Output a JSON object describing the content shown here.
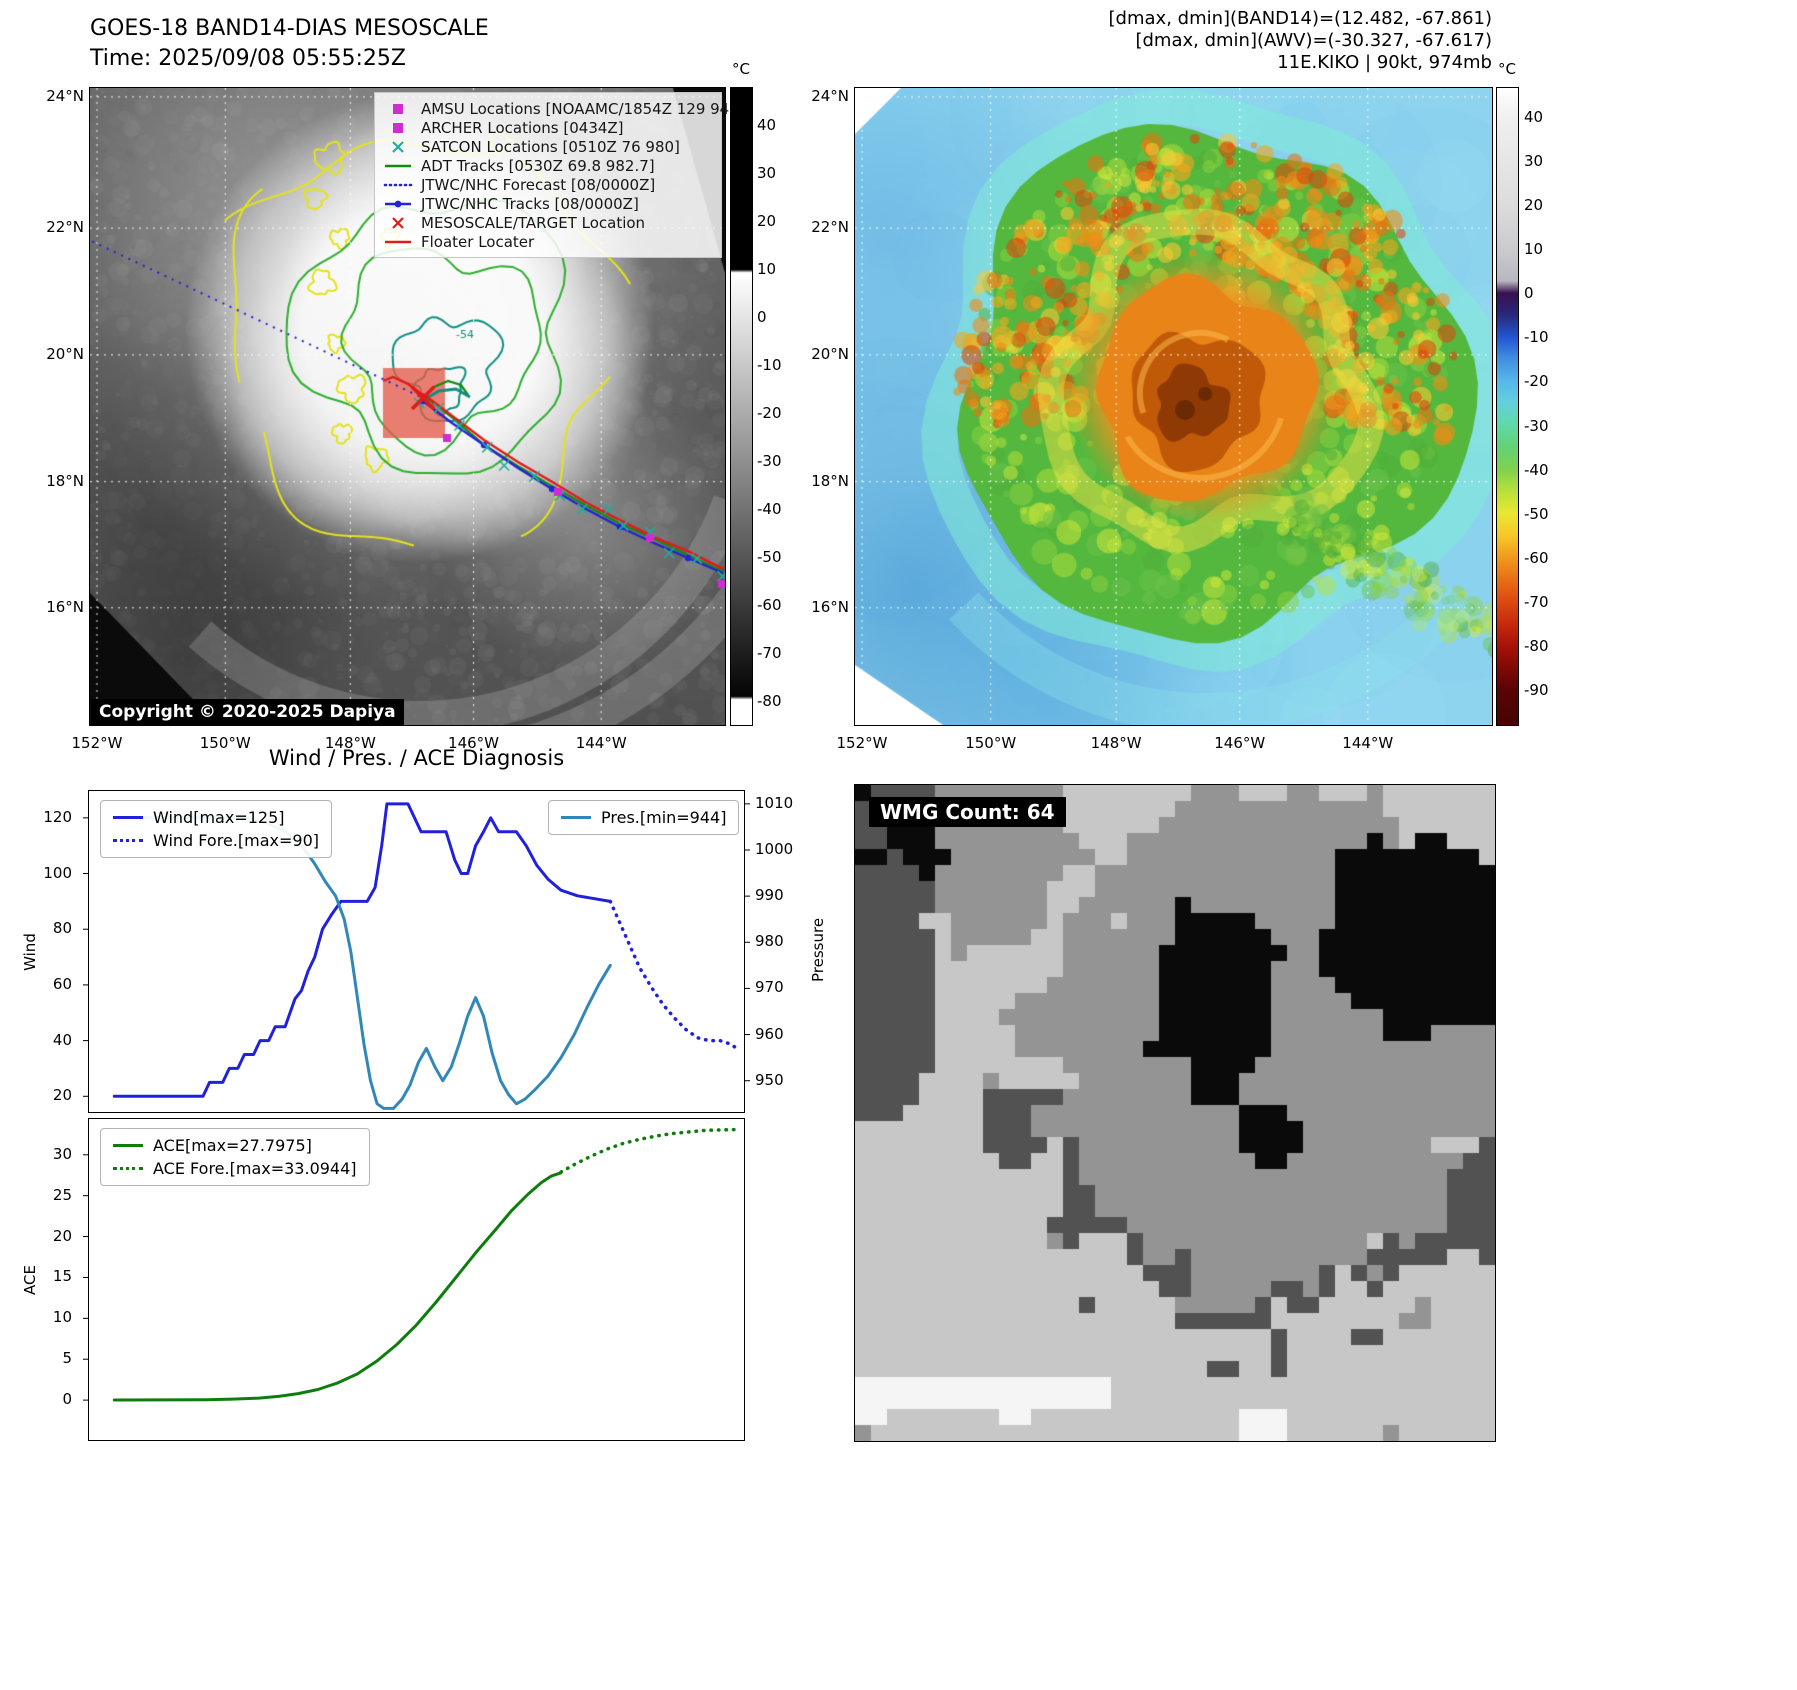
{
  "ir_panel": {
    "title_line1": "GOES-18 BAND14-DIAS MESOSCALE",
    "title_line2": "Time: 2025/09/08 05:55:25Z",
    "copyright": "Copyright © 2020-2025 Dapiya",
    "contour_label": "-54",
    "colorbar": {
      "unit": "°C",
      "ticks": [
        40,
        30,
        20,
        10,
        0,
        -10,
        -20,
        -30,
        -40,
        -50,
        -60,
        -70,
        -80
      ]
    },
    "lat_ticks": [
      "24°N",
      "22°N",
      "20°N",
      "18°N",
      "16°N"
    ],
    "lon_ticks": [
      "152°W",
      "150°W",
      "148°W",
      "146°W",
      "144°W"
    ],
    "legend_items": [
      {
        "marker": "square",
        "color": "#cf2dcf",
        "label": "AMSU Locations [NOAAMC/1854Z 129 940]"
      },
      {
        "marker": "square",
        "color": "#cf2dcf",
        "label": "ARCHER Locations [0434Z]"
      },
      {
        "marker": "x",
        "color": "#1fae9e",
        "label": "SATCON Locations [0510Z 76 980]"
      },
      {
        "marker": "line",
        "color": "#128a12",
        "label": "ADT Tracks [0530Z 69.8 982.7]"
      },
      {
        "marker": "dotted",
        "color": "#2222d6",
        "label": "JTWC/NHC Forecast [08/0000Z]"
      },
      {
        "marker": "line-dot",
        "color": "#2222d6",
        "label": "JTWC/NHC Tracks [08/0000Z]"
      },
      {
        "marker": "x",
        "color": "#e31a1a",
        "label": "MESOSCALE/TARGET Location"
      },
      {
        "marker": "line",
        "color": "#e31a1a",
        "label": "Floater Locater"
      }
    ]
  },
  "awv_panel": {
    "info_lines": [
      "[dmax, dmin](BAND14)=(12.482, -67.861)",
      "[dmax, dmin](AWV)=(-30.327, -67.617)",
      "11E.KIKO | 90kt, 974mb"
    ],
    "colorbar": {
      "unit": "°C",
      "ticks": [
        40,
        30,
        20,
        10,
        0,
        -10,
        -20,
        -30,
        -40,
        -50,
        -60,
        -70,
        -80,
        -90
      ]
    },
    "lat_ticks": [
      "24°N",
      "22°N",
      "20°N",
      "18°N",
      "16°N"
    ],
    "lon_ticks": [
      "152°W",
      "150°W",
      "148°W",
      "146°W",
      "144°W"
    ]
  },
  "wmg_panel": {
    "label": "WMG Count: 64"
  },
  "diagnosis_title": "Wind / Pres. / ACE Diagnosis",
  "chart_data": [
    {
      "type": "line",
      "title": "Wind / Pres. / ACE Diagnosis",
      "xlabel": "",
      "ylabel": "Wind",
      "y2label": "Pressure",
      "ylim": [
        14,
        130
      ],
      "y2lim": [
        943,
        1013
      ],
      "yticks": [
        20,
        40,
        60,
        80,
        100,
        120
      ],
      "y2ticks": [
        950,
        960,
        970,
        980,
        990,
        1000,
        1010
      ],
      "legend_position": "upper left / upper right",
      "grid": false,
      "series": [
        {
          "name": "Wind[max=125]",
          "axis": "left",
          "style": "solid",
          "color": "#2121dd",
          "points": [
            [
              0.04,
              20
            ],
            [
              0.175,
              20
            ],
            [
              0.185,
              25
            ],
            [
              0.205,
              25
            ],
            [
              0.215,
              30
            ],
            [
              0.228,
              30
            ],
            [
              0.238,
              35
            ],
            [
              0.252,
              35
            ],
            [
              0.262,
              40
            ],
            [
              0.275,
              40
            ],
            [
              0.285,
              45
            ],
            [
              0.3,
              45
            ],
            [
              0.315,
              55
            ],
            [
              0.325,
              58
            ],
            [
              0.335,
              65
            ],
            [
              0.345,
              70
            ],
            [
              0.357,
              80
            ],
            [
              0.37,
              85
            ],
            [
              0.385,
              90
            ],
            [
              0.425,
              90
            ],
            [
              0.437,
              95
            ],
            [
              0.447,
              110
            ],
            [
              0.455,
              125
            ],
            [
              0.487,
              125
            ],
            [
              0.497,
              120
            ],
            [
              0.507,
              115
            ],
            [
              0.545,
              115
            ],
            [
              0.558,
              105
            ],
            [
              0.568,
              100
            ],
            [
              0.578,
              100
            ],
            [
              0.59,
              110
            ],
            [
              0.602,
              115
            ],
            [
              0.613,
              120
            ],
            [
              0.625,
              115
            ],
            [
              0.652,
              115
            ],
            [
              0.667,
              110
            ],
            [
              0.683,
              103
            ],
            [
              0.7,
              98
            ],
            [
              0.72,
              94
            ],
            [
              0.745,
              92
            ],
            [
              0.795,
              90
            ]
          ]
        },
        {
          "name": "Wind Fore.[max=90]",
          "axis": "left",
          "style": "dotted",
          "color": "#2121dd",
          "points": [
            [
              0.795,
              90
            ],
            [
              0.81,
              82
            ],
            [
              0.825,
              74
            ],
            [
              0.84,
              66
            ],
            [
              0.858,
              59
            ],
            [
              0.875,
              53
            ],
            [
              0.893,
              48
            ],
            [
              0.91,
              44
            ],
            [
              0.928,
              41
            ],
            [
              0.945,
              40
            ],
            [
              0.962,
              40
            ],
            [
              0.975,
              39
            ],
            [
              0.99,
              37
            ]
          ]
        },
        {
          "name": "Pres.[min=944]",
          "axis": "right",
          "style": "solid",
          "color": "#3188b8",
          "points": [
            [
              0.04,
              1007
            ],
            [
              0.24,
              1007
            ],
            [
              0.27,
              1006
            ],
            [
              0.3,
              1004
            ],
            [
              0.325,
              1001
            ],
            [
              0.345,
              997
            ],
            [
              0.362,
              993
            ],
            [
              0.377,
              990
            ],
            [
              0.39,
              985
            ],
            [
              0.4,
              978
            ],
            [
              0.41,
              968
            ],
            [
              0.42,
              958
            ],
            [
              0.43,
              950
            ],
            [
              0.44,
              945
            ],
            [
              0.45,
              944
            ],
            [
              0.465,
              944
            ],
            [
              0.478,
              946
            ],
            [
              0.49,
              949
            ],
            [
              0.503,
              954
            ],
            [
              0.515,
              957
            ],
            [
              0.528,
              953
            ],
            [
              0.54,
              950
            ],
            [
              0.553,
              953
            ],
            [
              0.565,
              958
            ],
            [
              0.578,
              964
            ],
            [
              0.59,
              968
            ],
            [
              0.602,
              964
            ],
            [
              0.615,
              956
            ],
            [
              0.628,
              950
            ],
            [
              0.64,
              947
            ],
            [
              0.652,
              945
            ],
            [
              0.665,
              946
            ],
            [
              0.68,
              948
            ],
            [
              0.7,
              951
            ],
            [
              0.72,
              955
            ],
            [
              0.74,
              960
            ],
            [
              0.76,
              966
            ],
            [
              0.778,
              971
            ],
            [
              0.795,
              975
            ]
          ]
        }
      ]
    },
    {
      "type": "line",
      "xlabel": "",
      "ylabel": "ACE",
      "ylim": [
        -5,
        34.5
      ],
      "yticks": [
        0,
        5,
        10,
        15,
        20,
        25,
        30
      ],
      "legend_position": "upper left",
      "grid": false,
      "series": [
        {
          "name": "ACE[max=27.7975]",
          "axis": "left",
          "style": "solid",
          "color": "#0e7d0e",
          "points": [
            [
              0.04,
              0.02
            ],
            [
              0.18,
              0.05
            ],
            [
              0.22,
              0.12
            ],
            [
              0.26,
              0.25
            ],
            [
              0.29,
              0.45
            ],
            [
              0.32,
              0.8
            ],
            [
              0.35,
              1.3
            ],
            [
              0.38,
              2.1
            ],
            [
              0.41,
              3.2
            ],
            [
              0.44,
              4.8
            ],
            [
              0.47,
              6.8
            ],
            [
              0.5,
              9.2
            ],
            [
              0.53,
              12.0
            ],
            [
              0.56,
              15.0
            ],
            [
              0.59,
              18.0
            ],
            [
              0.62,
              20.8
            ],
            [
              0.645,
              23.2
            ],
            [
              0.67,
              25.2
            ],
            [
              0.69,
              26.6
            ],
            [
              0.705,
              27.4
            ],
            [
              0.72,
              27.8
            ]
          ]
        },
        {
          "name": "ACE Fore.[max=33.0944]",
          "axis": "left",
          "style": "dotted",
          "color": "#0e7d0e",
          "points": [
            [
              0.72,
              27.9
            ],
            [
              0.74,
              28.8
            ],
            [
              0.765,
              29.8
            ],
            [
              0.79,
              30.7
            ],
            [
              0.815,
              31.4
            ],
            [
              0.84,
              31.9
            ],
            [
              0.865,
              32.3
            ],
            [
              0.89,
              32.6
            ],
            [
              0.915,
              32.8
            ],
            [
              0.94,
              33.0
            ],
            [
              0.965,
              33.05
            ],
            [
              0.99,
              33.09
            ]
          ]
        }
      ]
    }
  ]
}
